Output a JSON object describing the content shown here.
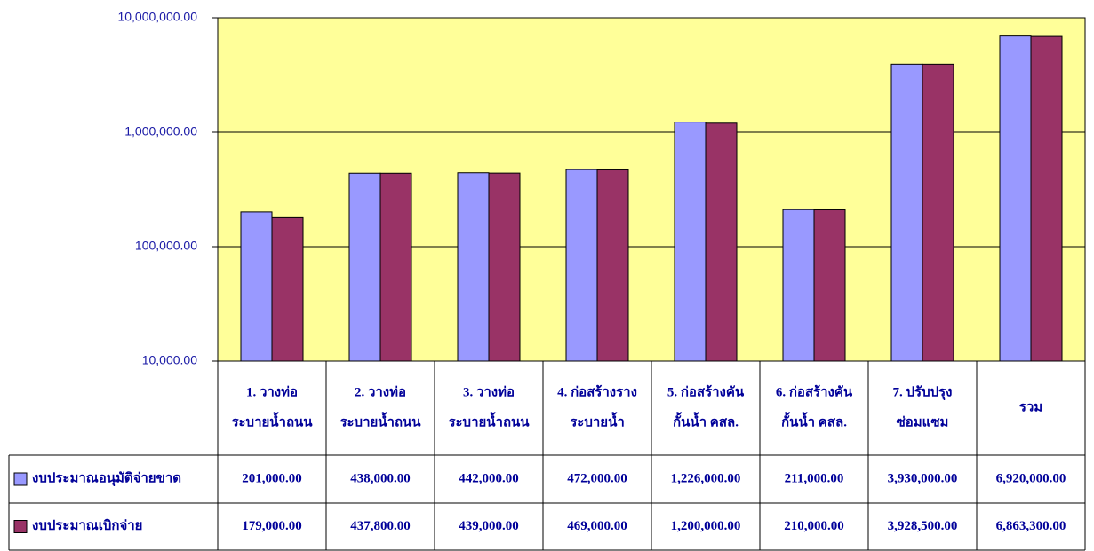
{
  "chart_data": {
    "type": "bar",
    "categories": [
      [
        "1. วางท่อ",
        "ระบายน้ำถนน"
      ],
      [
        "2.  วางท่อ",
        "ระบายน้ำถนน"
      ],
      [
        "3.  วางท่อ",
        "ระบายน้ำถนน"
      ],
      [
        "4. ก่อสร้างราง",
        "ระบายน้ำ"
      ],
      [
        "5. ก่อสร้างคัน",
        "กั้นน้ำ คสล."
      ],
      [
        "6. ก่อสร้างคัน",
        "กั้นน้ำ คสล."
      ],
      [
        "7. ปรับปรุง",
        "ซ่อมแซม"
      ],
      [
        "รวม"
      ]
    ],
    "series": [
      {
        "name": "งบประมาณอนุมัติจ่ายขาด",
        "color": "#9999ff",
        "values": [
          201000,
          438000,
          442000,
          472000,
          1226000,
          211000,
          3930000,
          6920000
        ],
        "value_labels": [
          "201,000.00",
          "438,000.00",
          "442,000.00",
          "472,000.00",
          "1,226,000.00",
          "211,000.00",
          "3,930,000.00",
          "6,920,000.00"
        ]
      },
      {
        "name": "งบประมาณเบิกจ่าย",
        "color": "#993366",
        "values": [
          179000,
          437800,
          439000,
          469000,
          1200000,
          210000,
          3928500,
          6863300
        ],
        "value_labels": [
          "179,000.00",
          "437,800.00",
          "439,000.00",
          "469,000.00",
          "1,200,000.00",
          "210,000.00",
          "3,928,500.00",
          "6,863,300.00"
        ]
      }
    ],
    "log_scale": true,
    "ylim": [
      10000,
      10000000
    ],
    "yticks": [
      {
        "value": 10000,
        "label": "10,000.00"
      },
      {
        "value": 100000,
        "label": "100,000.00"
      },
      {
        "value": 1000000,
        "label": "1,000,000.00"
      },
      {
        "value": 10000000,
        "label": "10,000,000.00"
      }
    ],
    "grid": true,
    "plot_background": "#ffff99"
  }
}
